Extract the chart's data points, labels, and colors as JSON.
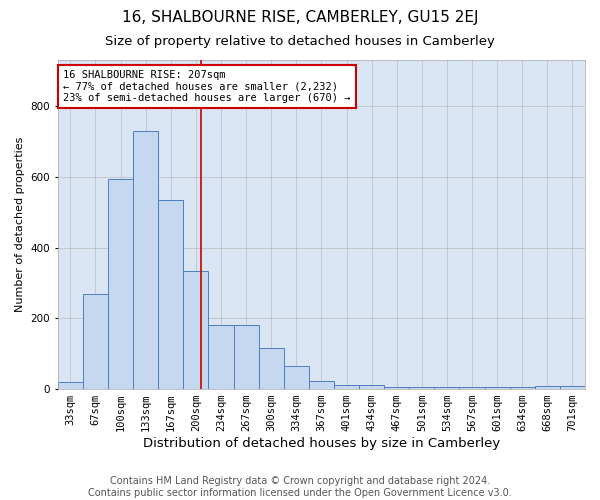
{
  "title": "16, SHALBOURNE RISE, CAMBERLEY, GU15 2EJ",
  "subtitle": "Size of property relative to detached houses in Camberley",
  "xlabel": "Distribution of detached houses by size in Camberley",
  "ylabel": "Number of detached properties",
  "categories": [
    "33sqm",
    "67sqm",
    "100sqm",
    "133sqm",
    "167sqm",
    "200sqm",
    "234sqm",
    "267sqm",
    "300sqm",
    "334sqm",
    "367sqm",
    "401sqm",
    "434sqm",
    "467sqm",
    "501sqm",
    "534sqm",
    "567sqm",
    "601sqm",
    "634sqm",
    "668sqm",
    "701sqm"
  ],
  "values": [
    20,
    270,
    595,
    730,
    535,
    335,
    180,
    180,
    115,
    65,
    22,
    12,
    12,
    5,
    5,
    5,
    5,
    5,
    5,
    8,
    8
  ],
  "bar_color": "#c5d8f0",
  "bar_edge_color": "#4d7ebf",
  "grid_color": "#bbbbbb",
  "background_color": "#d9e5f3",
  "annotation_line1": "16 SHALBOURNE RISE: 207sqm",
  "annotation_line2": "← 77% of detached houses are smaller (2,232)",
  "annotation_line3": "23% of semi-detached houses are larger (670) →",
  "annotation_box_color": "#ffffff",
  "annotation_box_edge": "#cc0000",
  "vline_color": "#cc0000",
  "ylim": [
    0,
    930
  ],
  "footer_text": "Contains HM Land Registry data © Crown copyright and database right 2024.\nContains public sector information licensed under the Open Government Licence v3.0.",
  "title_fontsize": 11,
  "subtitle_fontsize": 9.5,
  "xlabel_fontsize": 9.5,
  "ylabel_fontsize": 8,
  "tick_fontsize": 7.5,
  "annotation_fontsize": 7.5,
  "footer_fontsize": 7
}
